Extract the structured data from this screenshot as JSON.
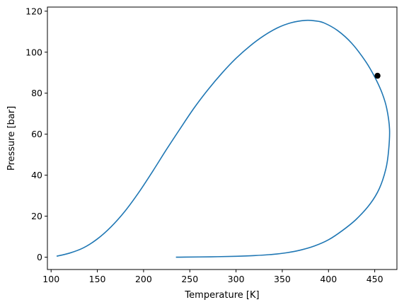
{
  "chart_data": {
    "type": "line",
    "title": "",
    "xlabel": "Temperature [K]",
    "ylabel": "Pressure [bar]",
    "xlim": [
      96,
      474
    ],
    "ylim": [
      -6,
      122
    ],
    "x_ticks": [
      100,
      150,
      200,
      250,
      300,
      350,
      400,
      450
    ],
    "y_ticks": [
      0,
      20,
      40,
      60,
      80,
      100,
      120
    ],
    "grid": false,
    "legend": "none",
    "series": [
      {
        "color": "#1f77b4",
        "x": [
          106,
          120,
          135,
          150,
          165,
          180,
          195,
          210,
          225,
          240,
          255,
          270,
          285,
          300,
          315,
          330,
          345,
          360,
          375,
          385,
          395,
          410,
          425,
          440,
          450,
          458,
          463,
          466,
          465,
          462,
          455,
          445,
          430,
          415,
          400,
          385,
          370,
          355,
          340,
          320,
          300,
          280,
          260,
          245,
          235
        ],
        "y": [
          0.5,
          2.0,
          4.6,
          8.9,
          14.9,
          22.5,
          31.7,
          42.0,
          52.7,
          63.0,
          73.0,
          81.9,
          89.9,
          97.0,
          103.0,
          108.0,
          111.9,
          114.4,
          115.5,
          115.3,
          114.3,
          110.5,
          104.4,
          95.6,
          87.9,
          80.0,
          72.5,
          62.5,
          52.0,
          43.0,
          33.5,
          26.0,
          18.5,
          13.0,
          8.5,
          5.5,
          3.5,
          2.2,
          1.4,
          0.8,
          0.45,
          0.25,
          0.12,
          0.05,
          0.0
        ]
      }
    ],
    "markers": [
      {
        "x": 453,
        "y": 88.5,
        "color": "#000000"
      }
    ]
  }
}
